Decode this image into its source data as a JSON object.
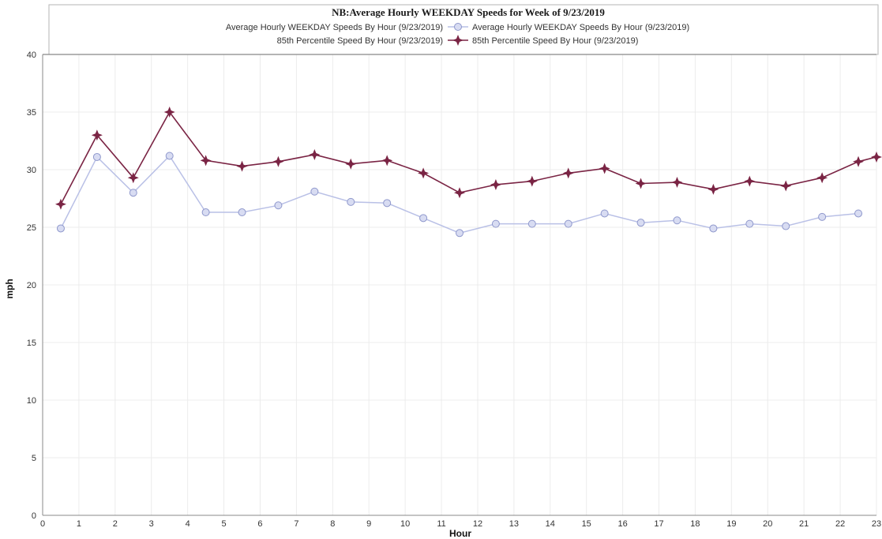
{
  "chart_data": {
    "type": "line",
    "title": "NB:Average Hourly WEEKDAY Speeds for Week of 9/23/2019",
    "xlabel": "Hour",
    "ylabel": "mph",
    "xlim": [
      0,
      23
    ],
    "ylim": [
      0,
      40
    ],
    "x_ticks": [
      "0",
      "1",
      "2",
      "3",
      "4",
      "5",
      "6",
      "7",
      "8",
      "9",
      "10",
      "11",
      "12",
      "13",
      "14",
      "15",
      "16",
      "17",
      "18",
      "19",
      "20",
      "21",
      "22",
      "23"
    ],
    "y_ticks": [
      "0",
      "5",
      "10",
      "15",
      "20",
      "25",
      "30",
      "35",
      "40"
    ],
    "grid": true,
    "legend_position": "top-center",
    "series": [
      {
        "name": "Average Hourly WEEKDAY Speeds By Hour (9/23/2019)",
        "color": "#b9c0e6",
        "marker": "circle",
        "x": [
          0.5,
          1.5,
          2.5,
          3.5,
          4.5,
          5.5,
          6.5,
          7.5,
          8.5,
          9.5,
          10.5,
          11.5,
          12.5,
          13.5,
          14.5,
          15.5,
          16.5,
          17.5,
          18.5,
          19.5,
          20.5,
          21.5,
          22.5
        ],
        "values": [
          24.9,
          31.1,
          28.0,
          31.2,
          26.3,
          26.3,
          26.9,
          28.1,
          27.2,
          27.1,
          25.8,
          24.5,
          25.3,
          25.3,
          25.3,
          26.2,
          25.4,
          25.6,
          24.9,
          25.3,
          25.1,
          25.9,
          26.2
        ]
      },
      {
        "name": "85th Percentile Speed By Hour (9/23/2019)",
        "color": "#7a2444",
        "marker": "star",
        "x": [
          0.5,
          1.5,
          2.5,
          3.5,
          4.5,
          5.5,
          6.5,
          7.5,
          8.5,
          9.5,
          10.5,
          11.5,
          12.5,
          13.5,
          14.5,
          15.5,
          16.5,
          17.5,
          18.5,
          19.5,
          20.5,
          21.5,
          22.5,
          23
        ],
        "values": [
          27.0,
          33.0,
          29.3,
          35.0,
          30.8,
          30.3,
          30.7,
          31.3,
          30.5,
          30.8,
          29.7,
          28.0,
          28.7,
          29.0,
          29.7,
          30.1,
          28.8,
          28.9,
          28.3,
          29.0,
          28.6,
          29.3,
          30.7,
          31.1
        ]
      }
    ]
  }
}
